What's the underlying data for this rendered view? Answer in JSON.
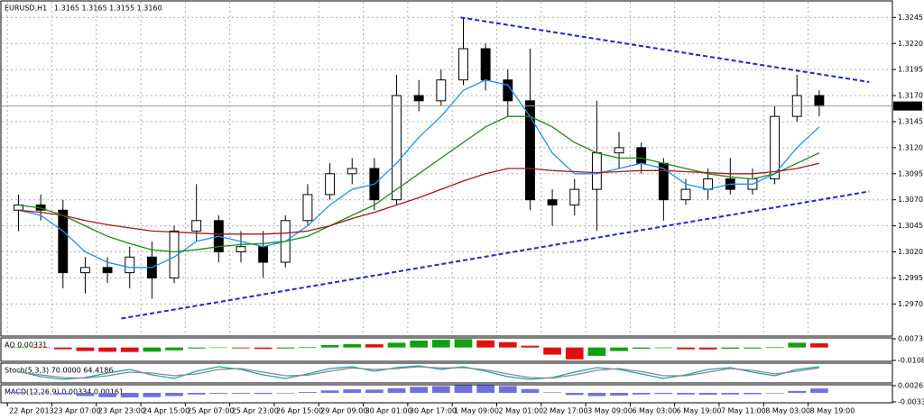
{
  "chart_data": [
    {
      "type": "candlestick",
      "title": "EURUSD,H1",
      "subtitle": "1.3165 1.3165 1.3155 1.3160",
      "xlim": [
        -2,
        318
      ],
      "ylim": [
        1.294,
        1.326
      ],
      "xticks": [
        {
          "value": 0,
          "label": "22 Apr 2013"
        },
        {
          "value": 16,
          "label": "23 Apr 07:00"
        },
        {
          "value": 32,
          "label": "23 Apr 23:00"
        },
        {
          "value": 48,
          "label": "24 Apr 15:00"
        },
        {
          "value": 64,
          "label": "25 Apr 07:00"
        },
        {
          "value": 80,
          "label": "25 Apr 23:00"
        },
        {
          "value": 96,
          "label": "26 Apr 15:00"
        },
        {
          "value": 112,
          "label": "29 Apr 09:00"
        },
        {
          "value": 128,
          "label": "30 Apr 01:00"
        },
        {
          "value": 144,
          "label": "30 Apr 17:00"
        },
        {
          "value": 160,
          "label": "1 May 09:00"
        },
        {
          "value": 176,
          "label": "2 May 01:00"
        },
        {
          "value": 192,
          "label": "2 May 17:00"
        },
        {
          "value": 208,
          "label": "3 May 09:00"
        },
        {
          "value": 224,
          "label": "6 May 03:00"
        },
        {
          "value": 240,
          "label": "6 May 19:00"
        },
        {
          "value": 256,
          "label": "7 May 11:00"
        },
        {
          "value": 272,
          "label": "8 May 03:00"
        },
        {
          "value": 288,
          "label": "8 May 19:00"
        }
      ],
      "yticks": [
        {
          "value": 1.3245,
          "label": "1.3245"
        },
        {
          "value": 1.322,
          "label": "1.3220"
        },
        {
          "value": 1.3195,
          "label": "1.3195"
        },
        {
          "value": 1.317,
          "label": "1.3170"
        },
        {
          "value": 1.3145,
          "label": "1.3145"
        },
        {
          "value": 1.312,
          "label": "1.3120"
        },
        {
          "value": 1.3095,
          "label": "1.3095"
        },
        {
          "value": 1.307,
          "label": "1.3070"
        },
        {
          "value": 1.3045,
          "label": "1.3045"
        },
        {
          "value": 1.302,
          "label": "1.3020"
        },
        {
          "value": 1.2995,
          "label": "1.2995"
        },
        {
          "value": 1.297,
          "label": "1.2970"
        }
      ],
      "grid": true,
      "x": [
        0,
        8,
        16,
        24,
        32,
        40,
        48,
        56,
        64,
        72,
        80,
        88,
        96,
        104,
        112,
        120,
        128,
        136,
        144,
        152,
        160,
        168,
        176,
        184,
        192,
        200,
        208,
        216,
        224,
        232,
        240,
        248,
        256,
        264,
        272,
        280,
        288
      ],
      "open": [
        1.306,
        1.3065,
        1.306,
        1.3,
        1.3005,
        1.3,
        1.3015,
        1.2995,
        1.304,
        1.305,
        1.302,
        1.3025,
        1.301,
        1.305,
        1.3075,
        1.3095,
        1.31,
        1.307,
        1.317,
        1.3165,
        1.3185,
        1.3215,
        1.3185,
        1.3165,
        1.307,
        1.3065,
        1.308,
        1.3115,
        1.312,
        1.3105,
        1.307,
        1.308,
        1.309,
        1.308,
        1.309,
        1.315,
        1.317
      ],
      "high": [
        1.3075,
        1.3075,
        1.307,
        1.3015,
        1.3015,
        1.3025,
        1.303,
        1.3045,
        1.3085,
        1.3055,
        1.304,
        1.304,
        1.3055,
        1.3085,
        1.3105,
        1.311,
        1.311,
        1.319,
        1.3185,
        1.3195,
        1.3245,
        1.322,
        1.3195,
        1.3215,
        1.308,
        1.309,
        1.3165,
        1.3135,
        1.3125,
        1.311,
        1.309,
        1.31,
        1.311,
        1.31,
        1.316,
        1.319,
        1.3175
      ],
      "low": [
        1.304,
        1.305,
        1.2985,
        1.298,
        1.299,
        1.2985,
        1.2975,
        1.299,
        1.303,
        1.301,
        1.301,
        1.2995,
        1.3005,
        1.3045,
        1.307,
        1.3085,
        1.306,
        1.3065,
        1.3155,
        1.316,
        1.318,
        1.3175,
        1.315,
        1.306,
        1.3045,
        1.3055,
        1.304,
        1.31,
        1.3095,
        1.305,
        1.3065,
        1.307,
        1.3075,
        1.3075,
        1.3085,
        1.3145,
        1.315
      ],
      "close": [
        1.3065,
        1.306,
        1.3,
        1.3005,
        1.3,
        1.3015,
        1.2995,
        1.304,
        1.305,
        1.302,
        1.3025,
        1.301,
        1.305,
        1.3075,
        1.3095,
        1.31,
        1.307,
        1.317,
        1.3165,
        1.3185,
        1.3215,
        1.3185,
        1.3165,
        1.307,
        1.3065,
        1.308,
        1.3115,
        1.312,
        1.3105,
        1.307,
        1.308,
        1.309,
        1.308,
        1.309,
        1.315,
        1.317,
        1.316
      ],
      "series": [
        {
          "color": "#1e90ff",
          "values": [
            1.306,
            1.3055,
            1.304,
            1.302,
            1.301,
            1.3005,
            1.3005,
            1.3015,
            1.303,
            1.3035,
            1.303,
            1.3025,
            1.303,
            1.3045,
            1.3065,
            1.308,
            1.3085,
            1.3105,
            1.313,
            1.315,
            1.3175,
            1.3185,
            1.318,
            1.315,
            1.3115,
            1.3095,
            1.3095,
            1.31,
            1.3105,
            1.31,
            1.3085,
            1.308,
            1.3085,
            1.3085,
            1.3095,
            1.312,
            1.314
          ]
        },
        {
          "color": "#1a8a1a",
          "values": [
            1.3065,
            1.3062,
            1.3055,
            1.3045,
            1.3035,
            1.3028,
            1.3022,
            1.302,
            1.3022,
            1.3025,
            1.3027,
            1.3028,
            1.303,
            1.3035,
            1.3045,
            1.3055,
            1.3065,
            1.308,
            1.3095,
            1.311,
            1.3125,
            1.314,
            1.315,
            1.315,
            1.314,
            1.3125,
            1.3115,
            1.311,
            1.311,
            1.3105,
            1.31,
            1.3095,
            1.3092,
            1.309,
            1.3095,
            1.3105,
            1.3115
          ]
        },
        {
          "color": "#a01818",
          "values": [
            1.306,
            1.3058,
            1.3055,
            1.305,
            1.3046,
            1.3043,
            1.304,
            1.3039,
            1.3038,
            1.3037,
            1.3037,
            1.3037,
            1.3038,
            1.304,
            1.3045,
            1.3052,
            1.3058,
            1.3065,
            1.3072,
            1.308,
            1.3088,
            1.3095,
            1.31,
            1.31,
            1.3098,
            1.3097,
            1.3096,
            1.3097,
            1.3098,
            1.3098,
            1.3097,
            1.3096,
            1.3095,
            1.3095,
            1.3097,
            1.31,
            1.3105
          ]
        }
      ],
      "trendlines": [
        {
          "color": "#2424cc",
          "x": [
            163,
            310
          ],
          "values": [
            1.3245,
            1.3183
          ]
        },
        {
          "color": "#2424cc",
          "x": [
            41,
            310
          ],
          "values": [
            1.2956,
            1.3078
          ]
        }
      ],
      "price_label": {
        "value": 1.316,
        "label": "1.3160"
      }
    },
    {
      "type": "bar",
      "title": "AO 0.00331",
      "up_color": "#10a010",
      "down_color": "#e01010",
      "ylim": [
        -0.01087,
        0.00731
      ],
      "yticks": [
        0.00731,
        -0.01087
      ],
      "values": [
        0.0,
        -0.0003,
        -0.0015,
        -0.003,
        -0.0036,
        -0.0038,
        -0.0035,
        -0.0024,
        -0.0008,
        -0.0002,
        -0.0007,
        -0.0012,
        -0.0008,
        0.0005,
        0.002,
        0.0028,
        0.0027,
        0.004,
        0.0058,
        0.0065,
        0.007,
        0.006,
        0.0045,
        0.0015,
        -0.006,
        -0.01,
        -0.007,
        -0.003,
        -0.001,
        -0.0005,
        -0.0015,
        -0.0016,
        -0.001,
        -0.0008,
        0.0005,
        0.004,
        0.0035
      ]
    },
    {
      "type": "line",
      "title": "Stoch(5,3,3) 70.0000 64.4186",
      "ylim": [
        0,
        100
      ],
      "series": [
        {
          "color": "#20a0a0",
          "values": [
            60,
            30,
            15,
            25,
            50,
            70,
            40,
            20,
            60,
            85,
            70,
            40,
            20,
            45,
            75,
            85,
            60,
            80,
            90,
            70,
            85,
            60,
            30,
            15,
            25,
            55,
            80,
            70,
            45,
            20,
            40,
            70,
            80,
            55,
            35,
            70,
            85
          ]
        },
        {
          "color": "#888888",
          "values": [
            55,
            40,
            25,
            22,
            35,
            55,
            50,
            35,
            45,
            70,
            75,
            55,
            35,
            38,
            60,
            78,
            70,
            75,
            85,
            78,
            80,
            68,
            45,
            25,
            22,
            40,
            65,
            75,
            58,
            35,
            35,
            55,
            75,
            65,
            45,
            60,
            78
          ]
        }
      ]
    },
    {
      "type": "bar",
      "title": "MACD(12,26,9) 0.00334 0.00161",
      "up_color": "#7070e0",
      "down_color": "#7070e0",
      "ylim": [
        -0.00334,
        0.00265
      ],
      "yticks": [
        0.00265,
        -0.00334
      ],
      "values": [
        0.0003,
        0.0001,
        -0.0006,
        -0.0012,
        -0.0016,
        -0.0017,
        -0.0016,
        -0.0012,
        -0.0006,
        -0.0003,
        -0.0003,
        -0.0004,
        -0.0002,
        0.0003,
        0.0009,
        0.0013,
        0.0012,
        0.0017,
        0.0022,
        0.0025,
        0.0028,
        0.0028,
        0.0025,
        0.0014,
        0.0002,
        -0.0008,
        -0.0012,
        -0.001,
        -0.0006,
        -0.0004,
        -0.0006,
        -0.0007,
        -0.0006,
        -0.0005,
        -0.0002,
        0.0007,
        0.0016
      ]
    }
  ]
}
